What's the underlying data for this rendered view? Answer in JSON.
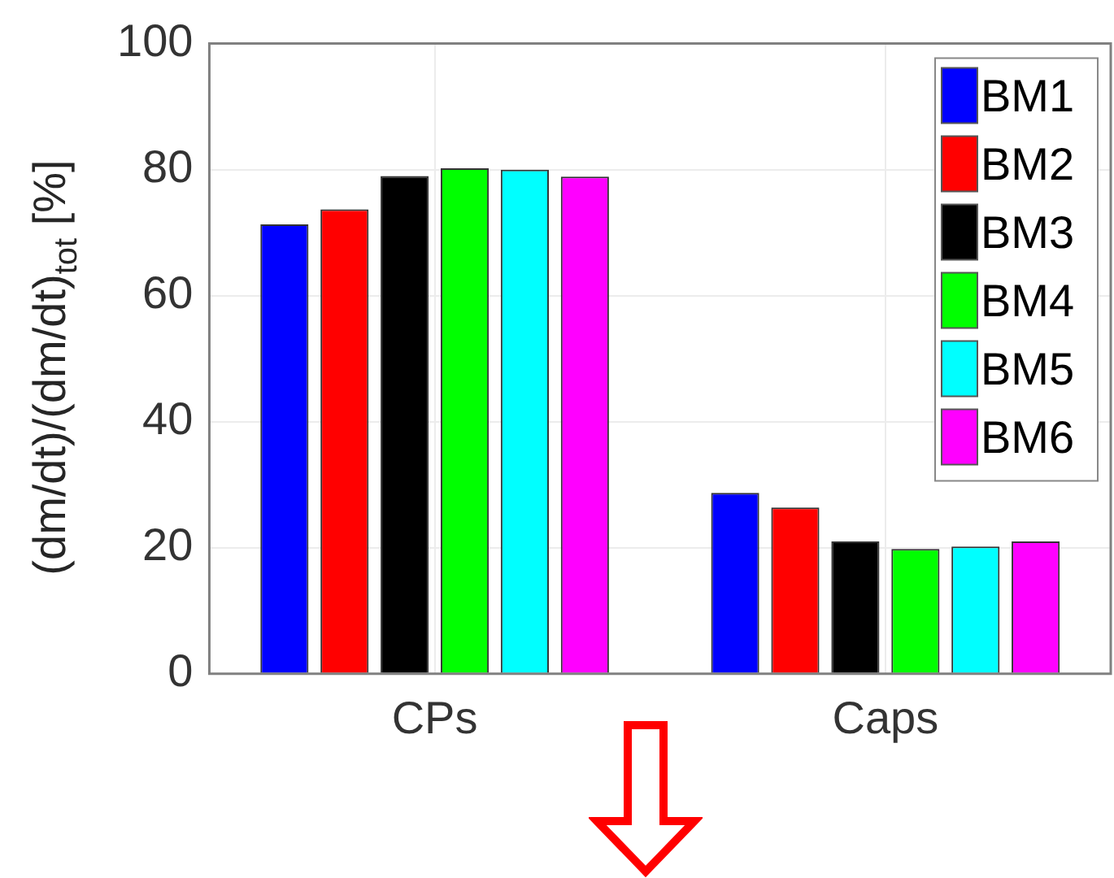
{
  "chart_data": {
    "type": "bar",
    "ylabel": "(dm/dt)/(dm/dt)$_{tot}$ [%]",
    "categories": [
      "CPs",
      "Caps"
    ],
    "series": [
      {
        "name": "BM1",
        "color": "#0000ff",
        "values": [
          71.3,
          28.7
        ]
      },
      {
        "name": "BM2",
        "color": "#ff0000",
        "values": [
          73.7,
          26.4
        ]
      },
      {
        "name": "BM3",
        "color": "#000000",
        "values": [
          79.0,
          21.0
        ]
      },
      {
        "name": "BM4",
        "color": "#00ff00",
        "values": [
          80.2,
          19.8
        ]
      },
      {
        "name": "BM5",
        "color": "#00ffff",
        "values": [
          80.0,
          20.2
        ]
      },
      {
        "name": "BM6",
        "color": "#ff00ff",
        "values": [
          78.9,
          21.0
        ]
      }
    ],
    "ylim": [
      0,
      100
    ],
    "yticks": [
      0,
      20,
      40,
      60,
      80,
      100
    ],
    "grid": true,
    "legend": "top right"
  }
}
